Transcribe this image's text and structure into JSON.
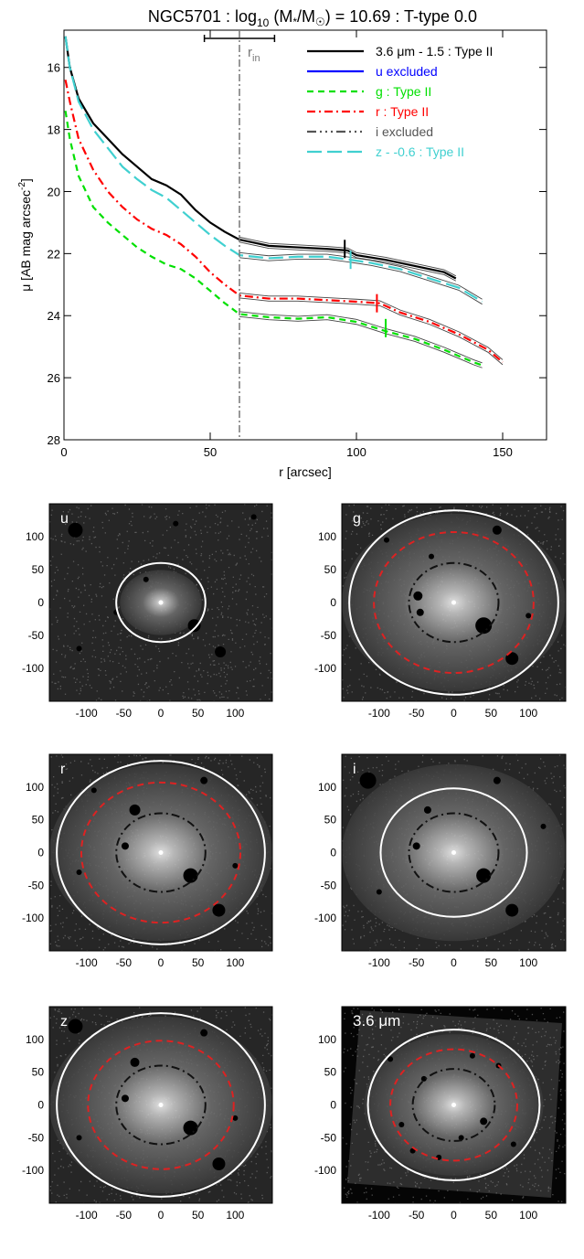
{
  "chart_data": [
    {
      "type": "line",
      "title": "NGC5701 : log10 (M*/M☉) = 10.69 : T-type 0.0",
      "title_parts": {
        "name": "NGC5701 : log",
        "sub": "10",
        "mass": " (M",
        "star": "*",
        "slash": "/M",
        "sun": "☉",
        "rest": ") = 10.69 : T-type 0.0"
      },
      "xlabel": "r [arcsec]",
      "ylabel": "μ [AB mag arcsec",
      "ylabel_sup": "-2",
      "ylabel_close": "]",
      "xlim": [
        0,
        165
      ],
      "ylim": [
        28,
        14.8
      ],
      "y_reversed": true,
      "xticks": [
        0,
        50,
        100,
        150
      ],
      "yticks": [
        16,
        18,
        20,
        22,
        24,
        26,
        28
      ],
      "grid": false,
      "legend_position": "top-right",
      "r_in": 60,
      "r_in_label": "r",
      "r_in_sub": "in",
      "r_in_bar": [
        48,
        72
      ],
      "series": [
        {
          "name": "3.6 μm - 1.5 : Type II",
          "color": "#000000",
          "dash": "",
          "width": 2.2,
          "x": [
            0.5,
            2,
            5,
            10,
            15,
            20,
            25,
            30,
            35,
            40,
            45,
            50,
            55,
            60,
            65,
            70,
            80,
            90,
            97,
            100,
            110,
            120,
            130,
            134
          ],
          "y": [
            15.0,
            16.0,
            17.0,
            17.8,
            18.3,
            18.8,
            19.2,
            19.6,
            19.8,
            20.1,
            20.6,
            21.0,
            21.3,
            21.55,
            21.65,
            21.75,
            21.8,
            21.85,
            21.9,
            22.05,
            22.2,
            22.4,
            22.6,
            22.8
          ]
        },
        {
          "name": "u excluded",
          "color": "#0000ff",
          "dash": "",
          "width": 2.2,
          "x": [],
          "y": []
        },
        {
          "name": "g : Type II",
          "color": "#00e000",
          "dash": "7,5",
          "width": 2.2,
          "x": [
            0.5,
            2,
            5,
            10,
            15,
            20,
            25,
            30,
            35,
            40,
            45,
            50,
            55,
            60,
            65,
            70,
            80,
            90,
            100,
            110,
            120,
            130,
            140,
            143
          ],
          "y": [
            17.4,
            18.3,
            19.5,
            20.5,
            21.0,
            21.4,
            21.8,
            22.1,
            22.35,
            22.5,
            22.8,
            23.2,
            23.6,
            23.95,
            24.0,
            24.05,
            24.1,
            24.05,
            24.2,
            24.5,
            24.75,
            25.1,
            25.5,
            25.6
          ]
        },
        {
          "name": "r : Type II",
          "color": "#ff0000",
          "dash": "9,4,2,4",
          "width": 2.2,
          "x": [
            0.5,
            2,
            5,
            10,
            15,
            20,
            25,
            30,
            35,
            40,
            45,
            50,
            55,
            60,
            65,
            70,
            80,
            90,
            100,
            108,
            115,
            125,
            135,
            145,
            150
          ],
          "y": [
            16.4,
            17.1,
            18.3,
            19.3,
            20.0,
            20.5,
            20.9,
            21.2,
            21.4,
            21.7,
            22.1,
            22.6,
            23.0,
            23.35,
            23.4,
            23.45,
            23.45,
            23.5,
            23.55,
            23.6,
            23.9,
            24.2,
            24.6,
            25.1,
            25.5
          ]
        },
        {
          "name": "i excluded",
          "color": "#555555",
          "dash": "10,4,2,4,2,4,2,4",
          "width": 2.2,
          "x": [],
          "y": []
        },
        {
          "name": "z - -0.6 : Type II",
          "color": "#40d0d0",
          "dash": "16,6",
          "width": 2.2,
          "x": [
            0.5,
            2,
            5,
            10,
            15,
            20,
            25,
            30,
            35,
            40,
            45,
            50,
            55,
            60,
            65,
            70,
            80,
            90,
            98,
            105,
            115,
            125,
            135,
            143
          ],
          "y": [
            15.0,
            16.0,
            17.1,
            18.0,
            18.6,
            19.2,
            19.6,
            19.95,
            20.2,
            20.6,
            21.0,
            21.4,
            21.75,
            22.05,
            22.1,
            22.15,
            22.1,
            22.1,
            22.2,
            22.3,
            22.5,
            22.8,
            23.1,
            23.55
          ]
        }
      ],
      "break_marks": [
        {
          "band": "3.6",
          "x": 96,
          "y": 21.85,
          "color": "#000000"
        },
        {
          "band": "z",
          "x": 98,
          "y": 22.2,
          "color": "#40d0d0"
        },
        {
          "band": "r",
          "x": 107,
          "y": 23.6,
          "color": "#ff0000"
        },
        {
          "band": "g",
          "x": 110,
          "y": 24.4,
          "color": "#00e000"
        }
      ]
    },
    {
      "type": "image_panels",
      "axis_ticks": [
        -100,
        -50,
        0,
        50,
        100
      ],
      "axis_limit": 150,
      "panels": [
        {
          "label": "u",
          "circles": [
            {
              "radius": 60,
              "color": "#ffffff",
              "style": "solid"
            }
          ],
          "masks": [
            [
              -115,
              110,
              8
            ],
            [
              45,
              -35,
              7
            ],
            [
              80,
              -75,
              6
            ],
            [
              -20,
              35,
              3
            ],
            [
              -110,
              -70,
              3
            ],
            [
              125,
              130,
              3
            ],
            [
              -60,
              -15,
              3
            ],
            [
              20,
              120,
              3
            ]
          ]
        },
        {
          "label": "g",
          "circles": [
            {
              "radius": 140,
              "color": "#ffffff",
              "style": "solid"
            },
            {
              "radius": 107,
              "color": "#dd2222",
              "style": "dashed"
            },
            {
              "radius": 60,
              "color": "#111111",
              "style": "dashdot"
            }
          ],
          "masks": [
            [
              40,
              -35,
              9
            ],
            [
              78,
              -85,
              7
            ],
            [
              -48,
              10,
              5
            ],
            [
              58,
              110,
              5
            ],
            [
              -45,
              -15,
              4
            ],
            [
              100,
              -20,
              3
            ],
            [
              -30,
              70,
              3
            ],
            [
              -90,
              95,
              3
            ]
          ]
        },
        {
          "label": "r",
          "circles": [
            {
              "radius": 140,
              "color": "#ffffff",
              "style": "solid"
            },
            {
              "radius": 107,
              "color": "#dd2222",
              "style": "dashed"
            },
            {
              "radius": 60,
              "color": "#111111",
              "style": "dashdot"
            }
          ],
          "masks": [
            [
              40,
              -35,
              8
            ],
            [
              78,
              -88,
              7
            ],
            [
              -35,
              65,
              6
            ],
            [
              -48,
              10,
              4
            ],
            [
              58,
              110,
              4
            ],
            [
              100,
              -20,
              3
            ],
            [
              -90,
              95,
              3
            ],
            [
              -110,
              -30,
              3
            ]
          ]
        },
        {
          "label": "i",
          "circles": [
            {
              "radius": 98,
              "color": "#ffffff",
              "style": "solid"
            },
            {
              "radius": 60,
              "color": "#111111",
              "style": "dashdot"
            }
          ],
          "masks": [
            [
              -115,
              110,
              9
            ],
            [
              40,
              -35,
              8
            ],
            [
              78,
              -88,
              7
            ],
            [
              -50,
              10,
              4
            ],
            [
              58,
              110,
              4
            ],
            [
              -35,
              65,
              4
            ],
            [
              120,
              40,
              3
            ],
            [
              -100,
              -60,
              3
            ]
          ]
        },
        {
          "label": "z",
          "circles": [
            {
              "radius": 140,
              "color": "#ffffff",
              "style": "solid"
            },
            {
              "radius": 98,
              "color": "#dd2222",
              "style": "dashed"
            },
            {
              "radius": 60,
              "color": "#111111",
              "style": "dashdot"
            }
          ],
          "masks": [
            [
              -115,
              120,
              8
            ],
            [
              40,
              -35,
              8
            ],
            [
              78,
              -90,
              7
            ],
            [
              -35,
              65,
              5
            ],
            [
              -48,
              10,
              4
            ],
            [
              58,
              110,
              4
            ],
            [
              100,
              -20,
              3
            ],
            [
              -110,
              -50,
              3
            ]
          ]
        },
        {
          "label": "3.6 μm",
          "circles": [
            {
              "radius": 115,
              "color": "#ffffff",
              "style": "solid"
            },
            {
              "radius": 85,
              "color": "#dd2222",
              "style": "dashed"
            },
            {
              "radius": 55,
              "color": "#111111",
              "style": "dashdot"
            }
          ],
          "masks": [
            [
              40,
              -25,
              4
            ],
            [
              -40,
              40,
              3
            ],
            [
              60,
              60,
              3
            ],
            [
              -70,
              -30,
              3
            ],
            [
              25,
              75,
              3
            ],
            [
              -20,
              -80,
              3
            ],
            [
              80,
              -60,
              3
            ],
            [
              -85,
              70,
              3
            ],
            [
              10,
              -50,
              3
            ],
            [
              -55,
              -70,
              3
            ]
          ]
        }
      ]
    }
  ]
}
